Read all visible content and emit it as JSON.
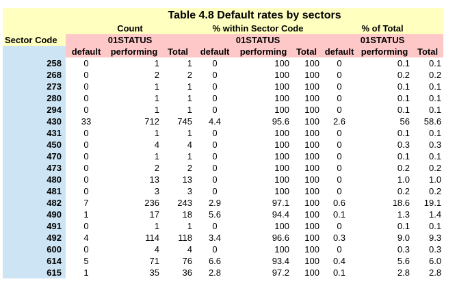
{
  "title": "Table 4.8 Default rates by sectors",
  "groups": {
    "count": "Count",
    "pct_within": "% within Sector Code",
    "pct_total": "% of Total"
  },
  "status_label": "01STATUS",
  "row_header": "Sector Code",
  "cols": [
    "default",
    "performing",
    "Total",
    "default",
    "performing",
    "Total",
    "default",
    "performing",
    "Total"
  ],
  "rows": [
    [
      "258",
      "0",
      "1",
      "1",
      "0",
      "100",
      "100",
      "0",
      "0.1",
      "0.1"
    ],
    [
      "268",
      "0",
      "2",
      "2",
      "0",
      "100",
      "100",
      "0",
      "0.2",
      "0.2"
    ],
    [
      "273",
      "0",
      "1",
      "1",
      "0",
      "100",
      "100",
      "0",
      "0.1",
      "0.1"
    ],
    [
      "280",
      "0",
      "1",
      "1",
      "0",
      "100",
      "100",
      "0",
      "0.1",
      "0.1"
    ],
    [
      "294",
      "0",
      "1",
      "1",
      "0",
      "100",
      "100",
      "0",
      "0.1",
      "0.1"
    ],
    [
      "430",
      "33",
      "712",
      "745",
      "4.4",
      "95.6",
      "100",
      "2.6",
      "56",
      "58.6"
    ],
    [
      "431",
      "0",
      "1",
      "1",
      "0",
      "100",
      "100",
      "0",
      "0.1",
      "0.1"
    ],
    [
      "450",
      "0",
      "4",
      "4",
      "0",
      "100",
      "100",
      "0",
      "0.3",
      "0.3"
    ],
    [
      "470",
      "0",
      "1",
      "1",
      "0",
      "100",
      "100",
      "0",
      "0.1",
      "0.1"
    ],
    [
      "473",
      "0",
      "2",
      "2",
      "0",
      "100",
      "100",
      "0",
      "0.2",
      "0.2"
    ],
    [
      "480",
      "0",
      "13",
      "13",
      "0",
      "100",
      "100",
      "0",
      "1.0",
      "1.0"
    ],
    [
      "481",
      "0",
      "3",
      "3",
      "0",
      "100",
      "100",
      "0",
      "0.2",
      "0.2"
    ],
    [
      "482",
      "7",
      "236",
      "243",
      "2.9",
      "97.1",
      "100",
      "0.6",
      "18.6",
      "19.1"
    ],
    [
      "490",
      "1",
      "17",
      "18",
      "5.6",
      "94.4",
      "100",
      "0.1",
      "1.3",
      "1.4"
    ],
    [
      "491",
      "0",
      "1",
      "1",
      "0",
      "100",
      "100",
      "0",
      "0.1",
      "0.1"
    ],
    [
      "492",
      "4",
      "114",
      "118",
      "3.4",
      "96.6",
      "100",
      "0.3",
      "9.0",
      "9.3"
    ],
    [
      "600",
      "0",
      "4",
      "4",
      "0",
      "100",
      "100",
      "0",
      "0.3",
      "0.3"
    ],
    [
      "614",
      "5",
      "71",
      "76",
      "6.6",
      "93.4",
      "100",
      "0.4",
      "5.6",
      "6.0"
    ],
    [
      "615",
      "1",
      "35",
      "36",
      "2.8",
      "97.2",
      "100",
      "0.1",
      "2.8",
      "2.8"
    ]
  ],
  "colors": {
    "header_yellow": "#ffffc0",
    "header_pink": "#ffc8c8",
    "sector_blue": "#cce4f4"
  }
}
